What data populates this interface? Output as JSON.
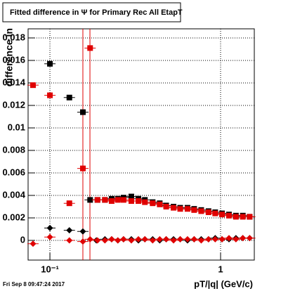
{
  "chart_data": {
    "type": "scatter",
    "title": "Fitted difference in Ψ  for Primary Rec All EtapT",
    "y_label": "difference in",
    "x_label": "pT/|q| (GeV/c)",
    "footer": "Fri Sep  8 09:47:24 2017",
    "x_log": true,
    "grid": true,
    "xlim": [
      0.0745,
      1.576
    ],
    "ylim": [
      -0.00175,
      0.01881
    ],
    "xticks": [
      {
        "value": 0.1,
        "label": "10⁻¹"
      },
      1
    ],
    "yticks": [
      0,
      0.002,
      0.004,
      0.006,
      0.008,
      0.01,
      0.012,
      0.014,
      0.016,
      0.018
    ],
    "vlines": {
      "color": "#e00000",
      "x": [
        0.156,
        0.1716
      ]
    },
    "series": [
      {
        "color": "#000000",
        "marker": "square",
        "x": [
          0.1,
          0.13,
          0.156,
          0.172,
          0.19,
          0.21,
          0.23,
          0.25,
          0.27,
          0.3,
          0.33,
          0.36,
          0.4,
          0.44,
          0.48,
          0.53,
          0.58,
          0.64,
          0.7,
          0.77,
          0.85,
          0.93,
          1.02,
          1.12,
          1.23,
          1.35,
          1.48
        ],
        "values": [
          0.0157,
          0.0127,
          0.0114,
          0.0036,
          0.0036,
          0.0036,
          0.0037,
          0.0037,
          0.0038,
          0.0039,
          0.0037,
          0.0036,
          0.0034,
          0.0033,
          0.0031,
          0.003,
          0.0029,
          0.0029,
          0.0028,
          0.0027,
          0.0026,
          0.0025,
          0.0024,
          0.0023,
          0.0022,
          0.0022,
          0.0021
        ]
      },
      {
        "color": "#e00000",
        "marker": "square",
        "x": [
          0.0796,
          0.1,
          0.13,
          0.156,
          0.172,
          0.19,
          0.21,
          0.23,
          0.25,
          0.27,
          0.3,
          0.33,
          0.36,
          0.4,
          0.44,
          0.48,
          0.53,
          0.58,
          0.64,
          0.7,
          0.77,
          0.85,
          0.93,
          1.02,
          1.12,
          1.23,
          1.35,
          1.48
        ],
        "values": [
          0.0138,
          0.0129,
          0.0033,
          0.0064,
          0.0171,
          0.0036,
          0.0036,
          0.0035,
          0.0036,
          0.0036,
          0.0035,
          0.0035,
          0.0034,
          0.0033,
          0.0032,
          0.003,
          0.0029,
          0.0028,
          0.0028,
          0.0027,
          0.0026,
          0.0025,
          0.0024,
          0.0023,
          0.0022,
          0.0021,
          0.0021,
          0.0021
        ]
      },
      {
        "color": "#000000",
        "marker": "diamond",
        "x": [
          0.1,
          0.13,
          0.156,
          0.187,
          0.21,
          0.23,
          0.25,
          0.27,
          0.3,
          0.33,
          0.36,
          0.4,
          0.44,
          0.48,
          0.53,
          0.58,
          0.64,
          0.7,
          0.77,
          0.85,
          0.93,
          1.02,
          1.12,
          1.23,
          1.35,
          1.48
        ],
        "values": [
          0.0011,
          0.0009,
          0.0008,
          0,
          0.0001,
          0.0001,
          0,
          0.0001,
          0.0001,
          0,
          0.0001,
          0.0001,
          0,
          0.0001,
          0.0001,
          0.0001,
          0,
          0.0001,
          0.0001,
          0.0001,
          0.0002,
          0.0001,
          0.0001,
          0.0002,
          0.0002,
          0.0002
        ]
      },
      {
        "color": "#e00000",
        "marker": "diamond",
        "x": [
          0.0796,
          0.1,
          0.13,
          0.156,
          0.172,
          0.19,
          0.21,
          0.23,
          0.25,
          0.27,
          0.3,
          0.33,
          0.36,
          0.4,
          0.44,
          0.48,
          0.53,
          0.58,
          0.64,
          0.7,
          0.77,
          0.85,
          0.93,
          1.02,
          1.12,
          1.23,
          1.35,
          1.48
        ],
        "values": [
          -0.0003,
          0.0003,
          0,
          -0.0001,
          0.0001,
          0,
          0,
          0.0001,
          0,
          0.0001,
          0,
          0.0001,
          0.0001,
          0,
          0.0001,
          0.0001,
          0,
          0.0001,
          0.0001,
          0.0001,
          0,
          0.0001,
          0.0001,
          0.0001,
          0.0002,
          0.0001,
          0.0002,
          0.0002
        ]
      }
    ]
  }
}
